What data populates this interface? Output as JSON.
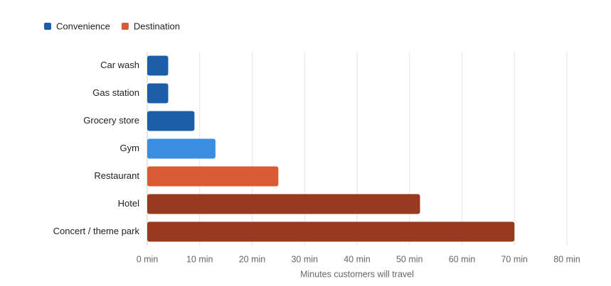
{
  "chart_data": {
    "type": "barh",
    "legend": [
      {
        "name": "Convenience",
        "color": "#1c5ea8"
      },
      {
        "name": "Destination",
        "color": "#d95b33"
      }
    ],
    "categories": [
      "Car wash",
      "Gas station",
      "Grocery store",
      "Gym",
      "Restaurant",
      "Hotel",
      "Concert / theme park"
    ],
    "values": [
      4,
      4,
      9,
      13,
      25,
      52,
      70
    ],
    "colors": [
      "#1c5ea8",
      "#1c5ea8",
      "#1c5ea8",
      "#3b8de0",
      "#d95b33",
      "#973a1f",
      "#973a1f"
    ],
    "xlabel": "Minutes customers will travel",
    "xlim": [
      0,
      80
    ],
    "xticks": [
      {
        "value": 0,
        "label": "0 min"
      },
      {
        "value": 10,
        "label": "10 min"
      },
      {
        "value": 20,
        "label": "20 min"
      },
      {
        "value": 30,
        "label": "30 min"
      },
      {
        "value": 40,
        "label": "40 min"
      },
      {
        "value": 50,
        "label": "50 min"
      },
      {
        "value": 60,
        "label": "60 min"
      },
      {
        "value": 70,
        "label": "70 min"
      },
      {
        "value": 80,
        "label": "80 min"
      }
    ],
    "grid": true
  }
}
